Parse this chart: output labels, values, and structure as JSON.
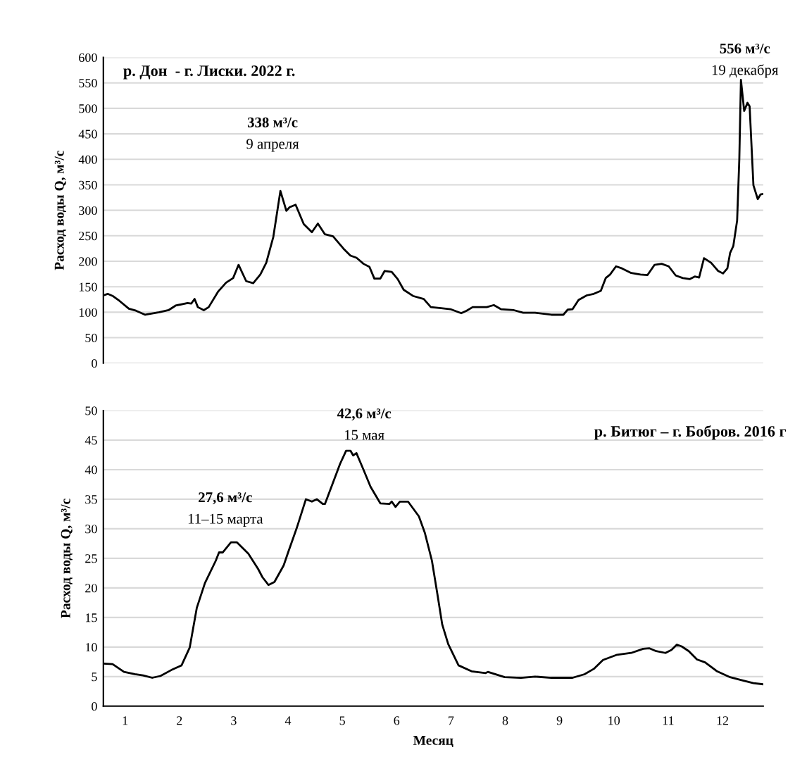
{
  "chart_data": [
    {
      "type": "line",
      "title": "р. Дон  - г. Лиски. 2022 г.",
      "ylabel": "Расход воды Q, м³/с",
      "x": [
        0.6,
        0.68,
        0.77,
        0.9,
        1.07,
        1.2,
        1.37,
        1.63,
        1.8,
        1.93,
        2.15,
        2.22,
        2.28,
        2.34,
        2.45,
        2.54,
        2.71,
        2.86,
        2.99,
        3.09,
        3.23,
        3.36,
        3.49,
        3.6,
        3.73,
        3.86,
        3.97,
        4.03,
        4.14,
        4.29,
        4.44,
        4.55,
        4.68,
        4.83,
        5.02,
        5.15,
        5.26,
        5.39,
        5.5,
        5.59,
        5.7,
        5.78,
        5.91,
        6.02,
        6.13,
        6.3,
        6.5,
        6.63,
        6.82,
        6.99,
        7.19,
        7.29,
        7.4,
        7.66,
        7.79,
        7.92,
        8.16,
        8.33,
        8.55,
        8.85,
        9.07,
        9.15,
        9.24,
        9.35,
        9.5,
        9.63,
        9.76,
        9.85,
        9.93,
        10.04,
        10.15,
        10.32,
        10.49,
        10.62,
        10.75,
        10.88,
        11.01,
        11.14,
        11.27,
        11.4,
        11.49,
        11.57,
        11.66,
        11.79,
        11.92,
        12.01,
        12.09,
        12.14,
        12.2,
        12.27,
        12.31,
        12.34,
        12.4,
        12.46,
        12.5,
        12.57,
        12.65,
        12.7,
        12.75
      ],
      "values": [
        133,
        136,
        132,
        122,
        107,
        103,
        95,
        100,
        104,
        113,
        118,
        117,
        126,
        110,
        104,
        110,
        140,
        158,
        167,
        193,
        161,
        157,
        174,
        197,
        248,
        338,
        299,
        306,
        311,
        273,
        257,
        274,
        253,
        249,
        225,
        211,
        207,
        195,
        189,
        166,
        166,
        181,
        179,
        165,
        144,
        132,
        126,
        110,
        108,
        106,
        98,
        103,
        110,
        110,
        114,
        106,
        104,
        99,
        99,
        95,
        95,
        105,
        106,
        124,
        133,
        136,
        142,
        167,
        174,
        190,
        186,
        177,
        174,
        173,
        193,
        195,
        190,
        172,
        167,
        165,
        170,
        168,
        206,
        197,
        181,
        176,
        186,
        216,
        230,
        280,
        400,
        556,
        495,
        511,
        504,
        349,
        322,
        331,
        332
      ],
      "color": "#000000",
      "xlim": [
        0.6,
        12.75
      ],
      "xticks": [
        1,
        2,
        3,
        4,
        5,
        6,
        7,
        8,
        9,
        10,
        11,
        12
      ],
      "ylim": [
        0,
        600
      ],
      "yticks": [
        0,
        50,
        100,
        150,
        200,
        250,
        300,
        350,
        400,
        450,
        500,
        550,
        600
      ],
      "grid": "y",
      "tick_labels": "y",
      "annotations": [
        {
          "text": "338 м³/с\n9 апреля",
          "x": 3.86,
          "y": 338
        },
        {
          "text": "556 м³/с\n19 декабря",
          "x": 12.34,
          "y": 556
        }
      ]
    },
    {
      "type": "line",
      "title": "р. Битюг – г. Бобров. 2016 г",
      "ylabel": "Расход воды Q, м³/с",
      "xlabel": "Месяц",
      "x": [
        0.6,
        0.77,
        0.98,
        1.18,
        1.33,
        1.5,
        1.65,
        1.85,
        2.04,
        2.19,
        2.32,
        2.47,
        2.67,
        2.73,
        2.8,
        2.95,
        3.06,
        3.27,
        3.45,
        3.53,
        3.64,
        3.75,
        3.92,
        4.01,
        4.16,
        4.33,
        4.44,
        4.53,
        4.64,
        4.68,
        4.96,
        5.07,
        5.15,
        5.2,
        5.26,
        5.39,
        5.52,
        5.7,
        5.87,
        5.91,
        5.98,
        6.06,
        6.21,
        6.41,
        6.52,
        6.65,
        6.75,
        6.84,
        6.95,
        7.14,
        7.38,
        7.64,
        7.68,
        7.99,
        8.29,
        8.55,
        8.85,
        9.24,
        9.46,
        9.63,
        9.8,
        10.06,
        10.32,
        10.54,
        10.65,
        10.78,
        10.95,
        11.06,
        11.16,
        11.25,
        11.38,
        11.53,
        11.68,
        11.9,
        12.14,
        12.35,
        12.57,
        12.75
      ],
      "values": [
        7.2,
        7.1,
        5.8,
        5.4,
        5.2,
        4.8,
        5.1,
        6.1,
        6.9,
        9.9,
        16.6,
        20.8,
        24.6,
        26.0,
        26.0,
        27.7,
        27.7,
        25.8,
        23.2,
        21.8,
        20.5,
        21.0,
        23.8,
        26.2,
        30.1,
        35.0,
        34.6,
        35.0,
        34.2,
        34.2,
        41.0,
        43.2,
        43.2,
        42.4,
        42.8,
        40.0,
        37.1,
        34.3,
        34.2,
        34.6,
        33.7,
        34.6,
        34.6,
        32.1,
        29.3,
        24.6,
        19.0,
        13.8,
        10.5,
        6.9,
        5.9,
        5.6,
        5.8,
        4.9,
        4.8,
        5.0,
        4.8,
        4.8,
        5.4,
        6.3,
        7.8,
        8.7,
        9.0,
        9.7,
        9.8,
        9.3,
        9.0,
        9.5,
        10.4,
        10.1,
        9.3,
        7.9,
        7.4,
        5.9,
        4.9,
        4.4,
        3.9,
        3.7
      ],
      "color": "#000000",
      "xlim": [
        0.6,
        12.75
      ],
      "xticks": [
        1,
        2,
        3,
        4,
        5,
        6,
        7,
        8,
        9,
        10,
        11,
        12
      ],
      "ylim": [
        0,
        50
      ],
      "yticks": [
        0,
        5,
        10,
        15,
        20,
        25,
        30,
        35,
        40,
        45,
        50
      ],
      "grid": "y",
      "annotations": [
        {
          "text": "27,6 м³/с\n11–15 марта",
          "x": 3.06,
          "y": 27.7
        },
        {
          "text": "42,6 м³/с\n15 мая",
          "x": 5.15,
          "y": 43.2
        }
      ]
    }
  ]
}
